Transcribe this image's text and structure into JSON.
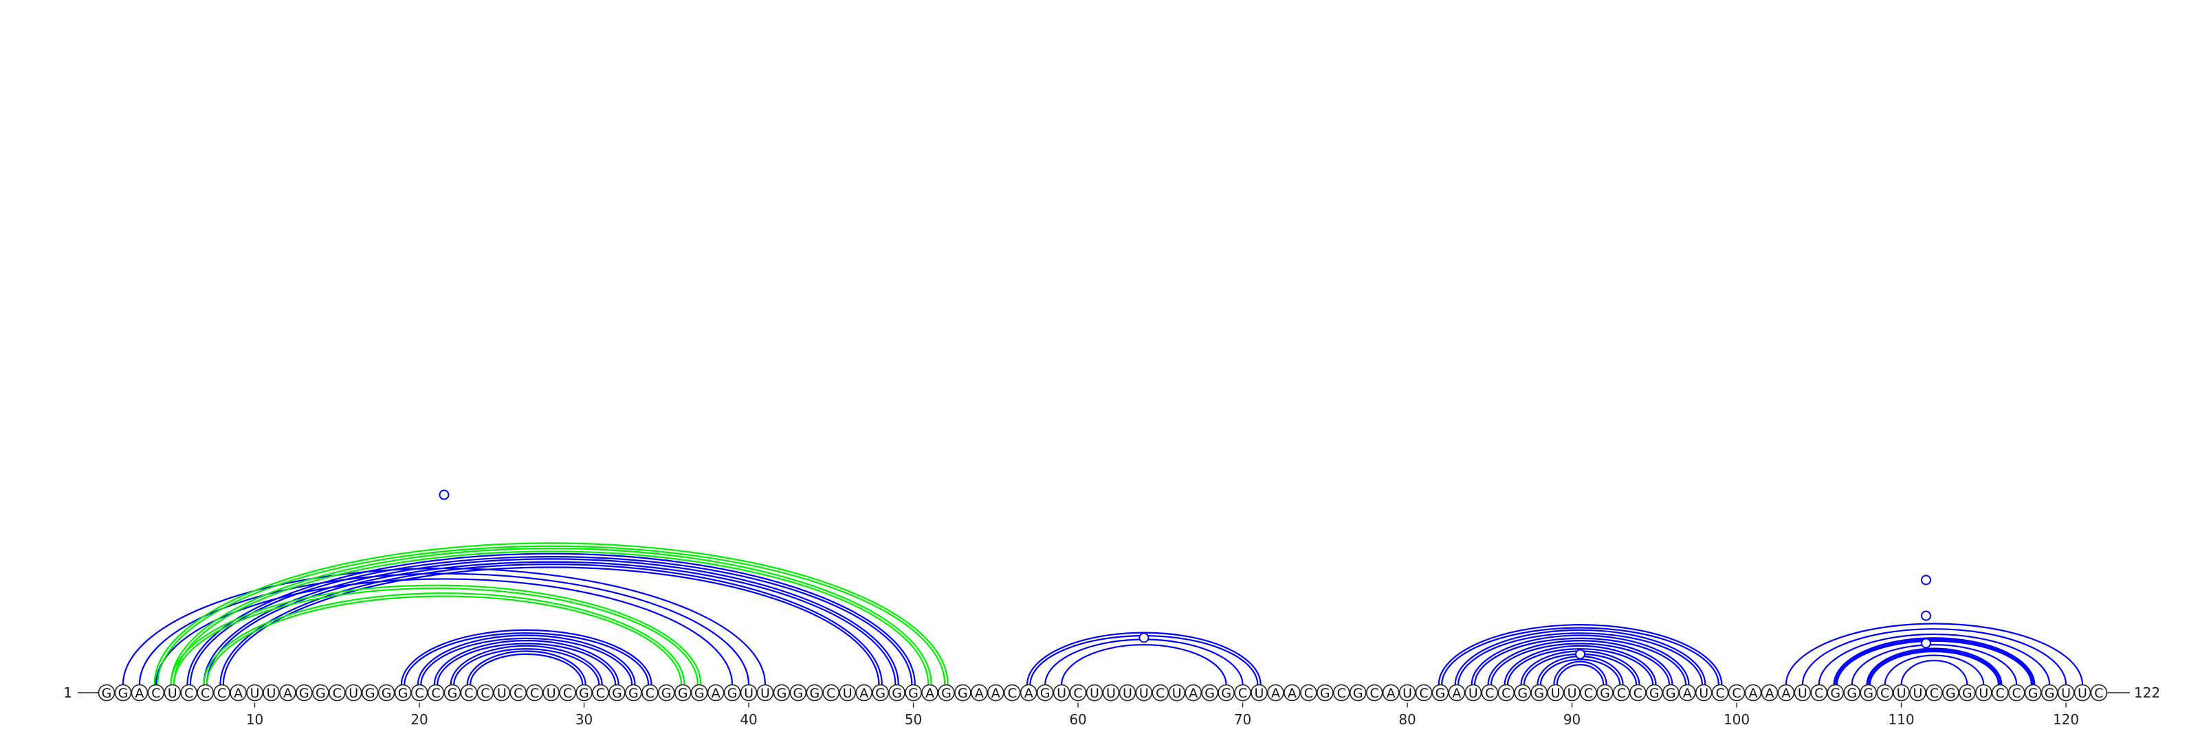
{
  "sequence": "GGACUCCCAUUAGGCUGGGCCGCCUCCUCGCGGCGGGAGUUGGGCUAGGGAGGAACAGUCUUUUCUAGGCUAACGCGCAUCGAUCCGGUUCGCCGGAUCCAAAUCGGGCUUCGGUCCGGUUC",
  "start_label": "1",
  "end_label": "122",
  "tick_positions": [
    10,
    20,
    30,
    40,
    50,
    60,
    70,
    80,
    90,
    100,
    110,
    120
  ],
  "tick_labels": [
    "10",
    "20",
    "30",
    "40",
    "50",
    "60",
    "70",
    "80",
    "90",
    "100",
    "110",
    "120"
  ],
  "colors": {
    "blue": "#0000ff",
    "green": "#00ee00",
    "text": "#111111"
  },
  "arc_groups": [
    {
      "color": "blue",
      "double": false,
      "pairs": [
        [
          2,
          41
        ],
        [
          3,
          40
        ],
        [
          4,
          39
        ]
      ]
    },
    {
      "color": "green",
      "double": true,
      "pairs": [
        [
          4,
          52
        ],
        [
          5,
          51
        ]
      ]
    },
    {
      "color": "blue",
      "double": true,
      "pairs": [
        [
          6,
          50
        ],
        [
          7,
          49
        ],
        [
          8,
          48
        ]
      ]
    },
    {
      "color": "green",
      "double": true,
      "pairs": [
        [
          5,
          37
        ],
        [
          7,
          36
        ]
      ]
    },
    {
      "color": "blue",
      "double": true,
      "pairs": [
        [
          19,
          34
        ],
        [
          20,
          33
        ],
        [
          21,
          32
        ],
        [
          22,
          31
        ],
        [
          23,
          30
        ]
      ]
    },
    {
      "color": "blue",
      "double": true,
      "pairs": [
        [
          57,
          71
        ]
      ]
    },
    {
      "color": "blue",
      "double": false,
      "pairs": [
        [
          58,
          70
        ],
        [
          59,
          69
        ]
      ]
    },
    {
      "color": "blue",
      "double": true,
      "pairs": [
        [
          82,
          99
        ],
        [
          83,
          98
        ],
        [
          84,
          97
        ],
        [
          85,
          96
        ],
        [
          86,
          95
        ],
        [
          87,
          94
        ],
        [
          88,
          93
        ],
        [
          89,
          92
        ]
      ]
    },
    {
      "color": "blue",
      "double": false,
      "pairs": [
        [
          103,
          121
        ],
        [
          104,
          120
        ],
        [
          105,
          119
        ],
        [
          106,
          118
        ],
        [
          107,
          117
        ],
        [
          108,
          116
        ],
        [
          109,
          115
        ],
        [
          110,
          114
        ]
      ]
    },
    {
      "color": "blue",
      "double": true,
      "pairs": [
        [
          106,
          118
        ],
        [
          108,
          116
        ]
      ]
    }
  ],
  "markers": [
    {
      "x": 21.5,
      "y": 0.67
    },
    {
      "x": 64,
      "y": 0.15
    },
    {
      "x": 90.5,
      "y": 0.09
    },
    {
      "x": 111.5,
      "y": 0.13
    },
    {
      "x": 111.5,
      "y": 0.23
    },
    {
      "x": 111.5,
      "y": 0.36
    }
  ]
}
